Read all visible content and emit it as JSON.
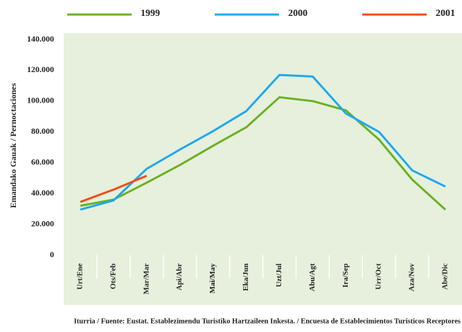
{
  "chart_data": {
    "type": "line",
    "y_label": "Emandako Gauak / Pernoctaciones",
    "source": "Iturria / Fuente: Eustat. Establezimendu Turistiko Hartzaileen Inkesta. / Encuesta de Establecimientos Turísticos Receptores",
    "categories": [
      "Urt/Ene",
      "Ots/Feb",
      "Mar/Mar",
      "Api/Abr",
      "Mai/May",
      "Eka/Jun",
      "Uzt/Jul",
      "Abu/Agt",
      "Ira/Sep",
      "Urr/Oct",
      "Aza/Nov",
      "Abe/Dic"
    ],
    "series": [
      {
        "name": "1999",
        "color": "#6ab023",
        "values": [
          32000,
          36000,
          47000,
          58500,
          71000,
          83000,
          102500,
          100000,
          94000,
          75000,
          49000,
          29500
        ]
      },
      {
        "name": "2000",
        "color": "#1ea7f0",
        "values": [
          29500,
          35500,
          56000,
          68500,
          80500,
          93500,
          117000,
          116000,
          92000,
          80000,
          55000,
          44500
        ]
      },
      {
        "name": "2001",
        "color": "#f04e12",
        "values": [
          34500,
          42500,
          51500,
          null,
          null,
          null,
          null,
          null,
          null,
          null,
          null,
          null
        ]
      }
    ],
    "ylim": [
      0,
      140000
    ],
    "yticks": [
      0,
      {
        "value": 20000,
        "label": "20.000"
      },
      {
        "value": 40000,
        "label": "40.000"
      },
      {
        "value": 60000,
        "label": "60.000"
      },
      {
        "value": 80000,
        "label": "80.000"
      },
      {
        "value": 100000,
        "label": "100.000"
      },
      {
        "value": 120000,
        "label": "120.000"
      },
      {
        "value": 140000,
        "label": "140.000"
      }
    ],
    "background": "#e6f0dc"
  }
}
